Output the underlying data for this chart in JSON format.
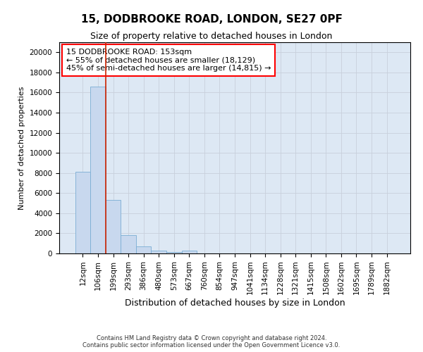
{
  "title1": "15, DODBROOKE ROAD, LONDON, SE27 0PF",
  "title2": "Size of property relative to detached houses in London",
  "xlabel": "Distribution of detached houses by size in London",
  "ylabel": "Number of detached properties",
  "categories": [
    "12sqm",
    "106sqm",
    "199sqm",
    "293sqm",
    "386sqm",
    "480sqm",
    "573sqm",
    "667sqm",
    "760sqm",
    "854sqm",
    "947sqm",
    "1041sqm",
    "1134sqm",
    "1228sqm",
    "1321sqm",
    "1415sqm",
    "1508sqm",
    "1602sqm",
    "1695sqm",
    "1789sqm",
    "1882sqm"
  ],
  "values": [
    8100,
    16600,
    5300,
    1800,
    700,
    280,
    120,
    280,
    0,
    0,
    0,
    0,
    0,
    0,
    0,
    0,
    0,
    0,
    0,
    0,
    0
  ],
  "bar_color": "#c8d8ee",
  "bar_edge_color": "#7aadd4",
  "annotation_text_line1": "15 DODBROOKE ROAD: 153sqm",
  "annotation_text_line2": "← 55% of detached houses are smaller (18,129)",
  "annotation_text_line3": "45% of semi-detached houses are larger (14,815) →",
  "vline_color": "#cc2200",
  "ylim": [
    0,
    21000
  ],
  "yticks": [
    0,
    2000,
    4000,
    6000,
    8000,
    10000,
    12000,
    14000,
    16000,
    18000,
    20000
  ],
  "footer1": "Contains HM Land Registry data © Crown copyright and database right 2024.",
  "footer2": "Contains public sector information licensed under the Open Government Licence v3.0.",
  "grid_color": "#c8d0dc",
  "bg_color": "#dde8f4",
  "title1_fontsize": 11,
  "title2_fontsize": 9,
  "ylabel_fontsize": 8,
  "xlabel_fontsize": 9,
  "tick_fontsize": 7.5,
  "footer_fontsize": 6
}
